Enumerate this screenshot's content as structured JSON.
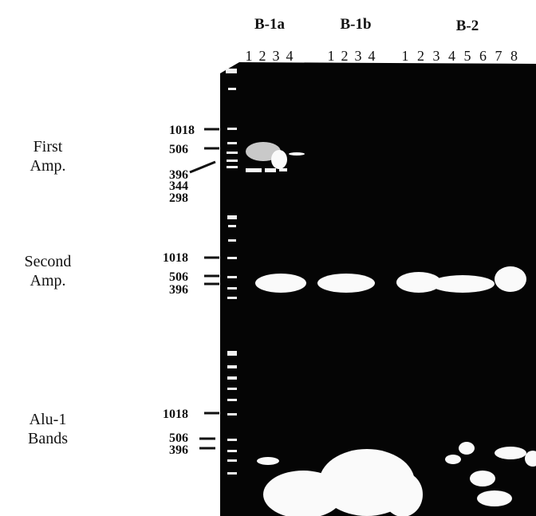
{
  "groups": [
    {
      "label": "B-1a",
      "lanes": [
        "1",
        "2",
        "3",
        "4"
      ]
    },
    {
      "label": "B-1b",
      "lanes": [
        "1",
        "2",
        "3",
        "4"
      ]
    },
    {
      "label": "B-2",
      "lanes": [
        "1",
        "2",
        "3",
        "4",
        "5",
        "6",
        "7",
        "8"
      ]
    }
  ],
  "sections": [
    {
      "label": [
        "First",
        "Amp."
      ],
      "markers": [
        "1018",
        "506",
        "396",
        "344",
        "298"
      ]
    },
    {
      "label": [
        "Second",
        "Amp."
      ],
      "markers": [
        "1018",
        "506",
        "396"
      ]
    },
    {
      "label": [
        "Alu-1",
        "Bands"
      ],
      "markers": [
        "1018",
        "506",
        "396"
      ]
    }
  ]
}
